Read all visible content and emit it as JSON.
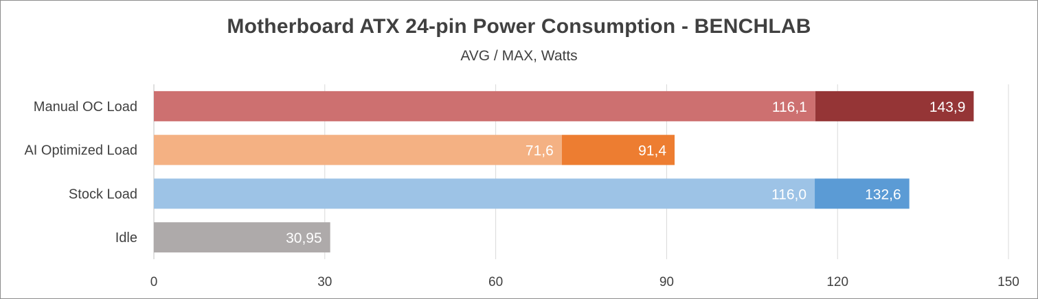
{
  "chart_data": {
    "type": "bar",
    "orientation": "horizontal",
    "title": "Motherboard ATX 24-pin Power Consumption - BENCHLAB",
    "subtitle": "AVG / MAX, Watts",
    "xlim": [
      0,
      150
    ],
    "x_ticks": [
      "0",
      "30",
      "60",
      "90",
      "120",
      "150"
    ],
    "grid": true,
    "categories": [
      {
        "label": "Manual OC Load",
        "avg": 116.1,
        "avg_label": "116,1",
        "max": 143.9,
        "max_label": "143,9",
        "avg_color": "#cd7070",
        "max_color": "#953536"
      },
      {
        "label": "AI Optimized Load",
        "avg": 71.6,
        "avg_label": "71,6",
        "max": 91.4,
        "max_label": "91,4",
        "avg_color": "#f4b183",
        "max_color": "#ed7d31"
      },
      {
        "label": "Stock Load",
        "avg": 116.0,
        "avg_label": "116,0",
        "max": 132.6,
        "max_label": "132,6",
        "avg_color": "#9dc3e6",
        "max_color": "#5b9bd5"
      },
      {
        "label": "Idle",
        "avg": 30.95,
        "avg_label": "30,95",
        "max": null,
        "max_label": "",
        "avg_color": "#aeaaaa",
        "max_color": "#7f7f7f"
      }
    ]
  }
}
